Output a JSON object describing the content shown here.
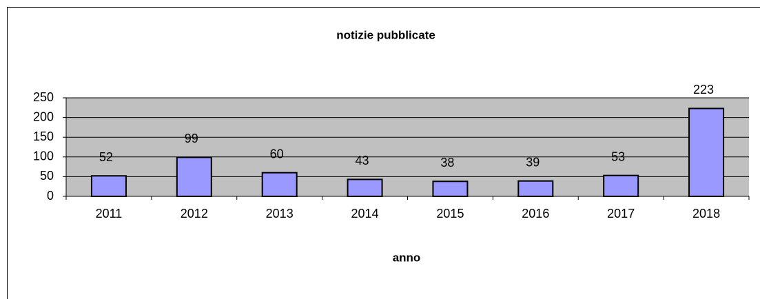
{
  "chart_data": {
    "type": "bar",
    "title": "notizie pubblicate",
    "x_label": "anno",
    "categories": [
      "2011",
      "2012",
      "2013",
      "2014",
      "2015",
      "2016",
      "2017",
      "2018"
    ],
    "values": [
      52,
      99,
      60,
      43,
      38,
      39,
      53,
      223
    ],
    "color": "#9999ff",
    "ylim": [
      0,
      250
    ],
    "yticks": [
      0,
      50,
      100,
      150,
      200,
      250
    ],
    "grid": true
  }
}
